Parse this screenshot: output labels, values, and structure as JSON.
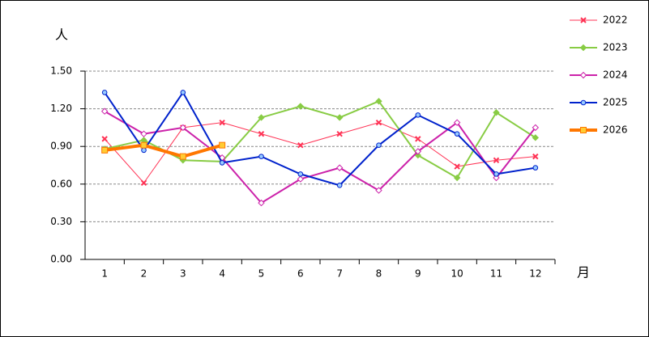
{
  "chart_data": {
    "type": "line",
    "ylabel": "人",
    "xlabel": "月",
    "categories": [
      "1",
      "2",
      "3",
      "4",
      "5",
      "6",
      "7",
      "8",
      "9",
      "10",
      "11",
      "12"
    ],
    "ylim": [
      0,
      1.5
    ],
    "yticks": [
      {
        "value": 0,
        "label": "0.00"
      },
      {
        "value": 0.3,
        "label": "0.30"
      },
      {
        "value": 0.6,
        "label": "0.60"
      },
      {
        "value": 0.9,
        "label": "0.90"
      },
      {
        "value": 1.2,
        "label": "1.20"
      },
      {
        "value": 1.5,
        "label": "1.50"
      }
    ],
    "grid": true,
    "legend": "right",
    "series": [
      {
        "name": "2022",
        "color": "#ff3355",
        "marker": "x",
        "width": 1,
        "values": [
          0.96,
          0.61,
          1.05,
          1.09,
          1.0,
          0.91,
          1.0,
          1.09,
          0.96,
          0.74,
          0.79,
          0.82
        ]
      },
      {
        "name": "2023",
        "color": "#88cc44",
        "marker": "diamond",
        "width": 2,
        "values": [
          0.88,
          0.95,
          0.79,
          0.78,
          1.13,
          1.22,
          1.13,
          1.26,
          0.83,
          0.65,
          1.17,
          0.97
        ]
      },
      {
        "name": "2024",
        "color": "#cc22aa",
        "marker": "diamond-open",
        "width": 2,
        "values": [
          1.18,
          1.0,
          1.05,
          0.81,
          0.45,
          0.64,
          0.73,
          0.55,
          0.86,
          1.09,
          0.65,
          1.05
        ]
      },
      {
        "name": "2025",
        "color": "#0022cc",
        "marker": "circle",
        "width": 2,
        "values": [
          1.33,
          0.87,
          1.33,
          0.77,
          0.82,
          0.68,
          0.59,
          0.91,
          1.15,
          1.0,
          0.68,
          0.73
        ]
      },
      {
        "name": "2026",
        "color": "#ff7700",
        "marker": "square",
        "width": 4,
        "values": [
          0.87,
          0.91,
          0.82,
          0.91,
          null,
          null,
          null,
          null,
          null,
          null,
          null,
          null
        ]
      }
    ]
  }
}
